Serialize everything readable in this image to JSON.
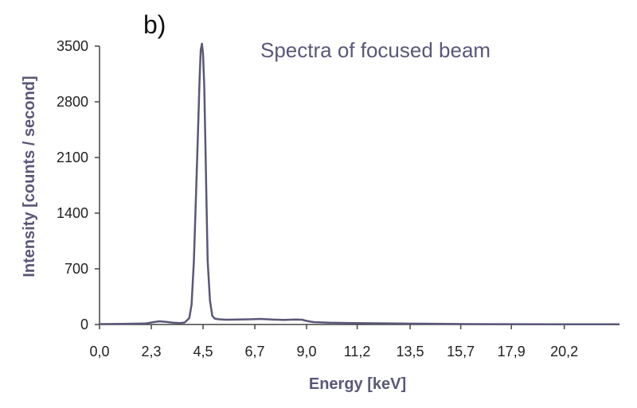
{
  "panel_label": "b)",
  "colors": {
    "series": "#5a5878",
    "axis": "#444444",
    "text": "#222222"
  },
  "chart_data": {
    "type": "line",
    "title": "Spectra of focused beam",
    "xlabel": "Energy [keV]",
    "ylabel": "Intensity [counts / second]",
    "xlim": [
      0,
      22.6
    ],
    "ylim": [
      0,
      3500
    ],
    "grid": false,
    "legend": "none",
    "x_ticks": [
      0.0,
      2.25,
      4.5,
      6.75,
      9.0,
      11.2,
      13.5,
      15.7,
      17.9,
      20.2
    ],
    "x_tick_labels": [
      "0,0",
      "2,3",
      "4,5",
      "6,7",
      "9,0",
      "11,2",
      "13,5",
      "15,7",
      "17,9",
      "20,2"
    ],
    "y_ticks": [
      0,
      700,
      1400,
      2100,
      2800,
      3500
    ],
    "y_tick_labels": [
      "0",
      "700",
      "1400",
      "2100",
      "2800",
      "3500"
    ],
    "series": [
      {
        "x": [
          0.0,
          1.0,
          2.0,
          2.3,
          2.6,
          2.9,
          3.2,
          3.5,
          3.7,
          3.9,
          4.0,
          4.1,
          4.2,
          4.3,
          4.35,
          4.4,
          4.45,
          4.5,
          4.55,
          4.6,
          4.65,
          4.7,
          4.8,
          4.9,
          5.0,
          5.2,
          5.5,
          6.0,
          6.5,
          7.0,
          7.5,
          8.0,
          8.5,
          8.8,
          9.0,
          9.3,
          10.0,
          11.0,
          12.0,
          13.0,
          14.0,
          15.0,
          16.0,
          18.0,
          20.0,
          22.6
        ],
        "y": [
          5,
          8,
          12,
          28,
          40,
          32,
          22,
          18,
          25,
          80,
          250,
          800,
          1700,
          2600,
          3100,
          3450,
          3530,
          3400,
          3000,
          2300,
          1500,
          800,
          300,
          110,
          75,
          65,
          60,
          62,
          65,
          70,
          62,
          58,
          62,
          60,
          45,
          30,
          22,
          18,
          15,
          12,
          10,
          7,
          5,
          4,
          3,
          3
        ]
      }
    ]
  }
}
